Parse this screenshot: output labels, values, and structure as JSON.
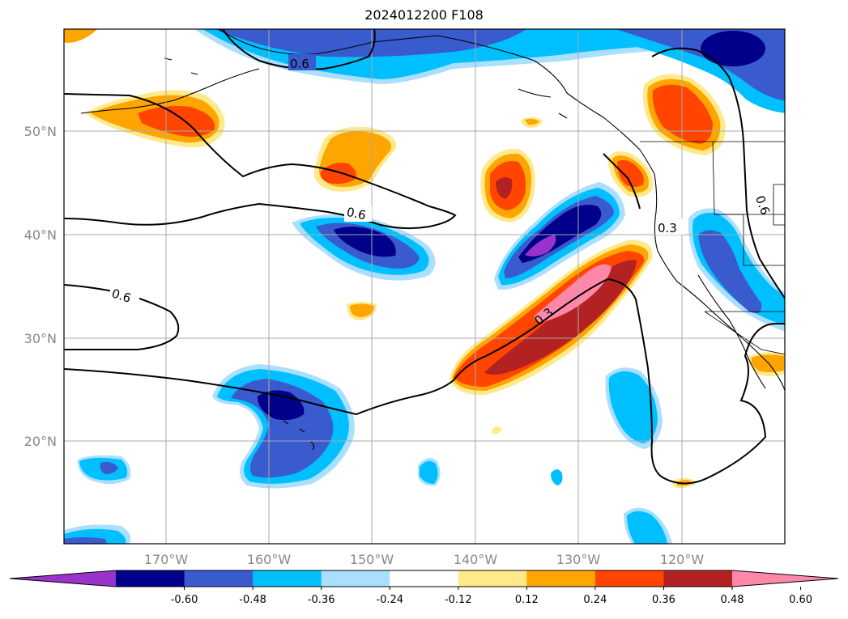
{
  "title": "2024012200 F108",
  "lon_labels": [
    "170°W",
    "160°W",
    "150°W",
    "140°W",
    "130°W",
    "120°W"
  ],
  "lat_labels": [
    "50°N",
    "40°N",
    "30°N",
    "20°N"
  ],
  "colorbar": {
    "ticks": [
      "-0.60",
      "-0.48",
      "-0.36",
      "-0.24",
      "-0.12",
      "0.12",
      "0.24",
      "0.36",
      "0.48",
      "0.60"
    ],
    "colors": [
      "#9933cc",
      "#00008b",
      "#3a5bcd",
      "#00bfff",
      "#aadfff",
      "#ffffff",
      "#ffe98a",
      "#ffa500",
      "#ff4500",
      "#b22222",
      "#ff88aa"
    ]
  },
  "contour_labels": [
    "0.6",
    "0.6",
    "0.6",
    "0.3",
    "0.3",
    "0.6"
  ],
  "colors": {
    "purple": "#9933cc",
    "navy": "#00008b",
    "blue": "#3a5bcd",
    "cyan": "#00bfff",
    "lightblue": "#aadfff",
    "yellow": "#ffe98a",
    "orange": "#ffa500",
    "redorange": "#ff4500",
    "darkred": "#b22222",
    "pink": "#ff88aa"
  }
}
